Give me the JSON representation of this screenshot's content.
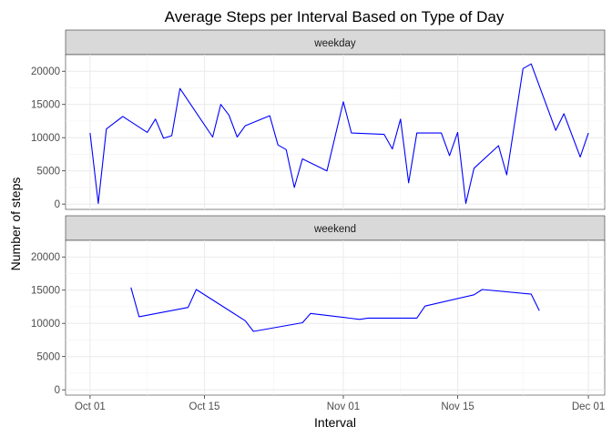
{
  "chart_data": {
    "type": "line",
    "title": "Average Steps per Interval Based on Type of Day",
    "xlabel": "Interval",
    "ylabel": "Number of steps",
    "x_tick_labels": [
      "Oct 01",
      "Oct 15",
      "Nov 01",
      "Nov 15",
      "Dec 01"
    ],
    "x_ticks": [
      "2012-10-01",
      "2012-10-15",
      "2012-11-01",
      "2012-11-15",
      "2012-12-01"
    ],
    "xlim": [
      "2012-09-28",
      "2012-12-03"
    ],
    "ylim": [
      -800,
      22500
    ],
    "y_ticks": [
      0,
      5000,
      10000,
      15000,
      20000
    ],
    "grid": true,
    "line_color": "#0000ff",
    "series": [
      {
        "name": "weekday",
        "points": [
          [
            "2012-10-01",
            10700
          ],
          [
            "2012-10-02",
            100
          ],
          [
            "2012-10-03",
            11300
          ],
          [
            "2012-10-05",
            13200
          ],
          [
            "2012-10-08",
            10800
          ],
          [
            "2012-10-09",
            12800
          ],
          [
            "2012-10-10",
            9900
          ],
          [
            "2012-10-11",
            10300
          ],
          [
            "2012-10-12",
            17400
          ],
          [
            "2012-10-16",
            10100
          ],
          [
            "2012-10-17",
            15000
          ],
          [
            "2012-10-18",
            13400
          ],
          [
            "2012-10-19",
            10100
          ],
          [
            "2012-10-20",
            11800
          ],
          [
            "2012-10-23",
            13300
          ],
          [
            "2012-10-24",
            8900
          ],
          [
            "2012-10-25",
            8200
          ],
          [
            "2012-10-26",
            2500
          ],
          [
            "2012-10-27",
            6800
          ],
          [
            "2012-10-30",
            5000
          ],
          [
            "2012-11-01",
            15400
          ],
          [
            "2012-11-02",
            10700
          ],
          [
            "2012-11-06",
            10500
          ],
          [
            "2012-11-07",
            8300
          ],
          [
            "2012-11-08",
            12800
          ],
          [
            "2012-11-09",
            3200
          ],
          [
            "2012-11-10",
            10700
          ],
          [
            "2012-11-13",
            10700
          ],
          [
            "2012-11-14",
            7300
          ],
          [
            "2012-11-15",
            10800
          ],
          [
            "2012-11-16",
            100
          ],
          [
            "2012-11-17",
            5400
          ],
          [
            "2012-11-20",
            8800
          ],
          [
            "2012-11-21",
            4400
          ],
          [
            "2012-11-23",
            20400
          ],
          [
            "2012-11-24",
            21100
          ],
          [
            "2012-11-27",
            11100
          ],
          [
            "2012-11-28",
            13600
          ],
          [
            "2012-11-30",
            7100
          ],
          [
            "2012-12-01",
            10700
          ]
        ]
      },
      {
        "name": "weekend",
        "points": [
          [
            "2012-10-06",
            15400
          ],
          [
            "2012-10-07",
            11000
          ],
          [
            "2012-10-13",
            12400
          ],
          [
            "2012-10-14",
            15100
          ],
          [
            "2012-10-20",
            10400
          ],
          [
            "2012-10-21",
            8800
          ],
          [
            "2012-10-27",
            10100
          ],
          [
            "2012-10-28",
            11500
          ],
          [
            "2012-11-03",
            10600
          ],
          [
            "2012-11-04",
            10800
          ],
          [
            "2012-11-10",
            10800
          ],
          [
            "2012-11-11",
            12600
          ],
          [
            "2012-11-17",
            14300
          ],
          [
            "2012-11-18",
            15100
          ],
          [
            "2012-11-24",
            14400
          ],
          [
            "2012-11-25",
            11900
          ]
        ]
      }
    ]
  }
}
